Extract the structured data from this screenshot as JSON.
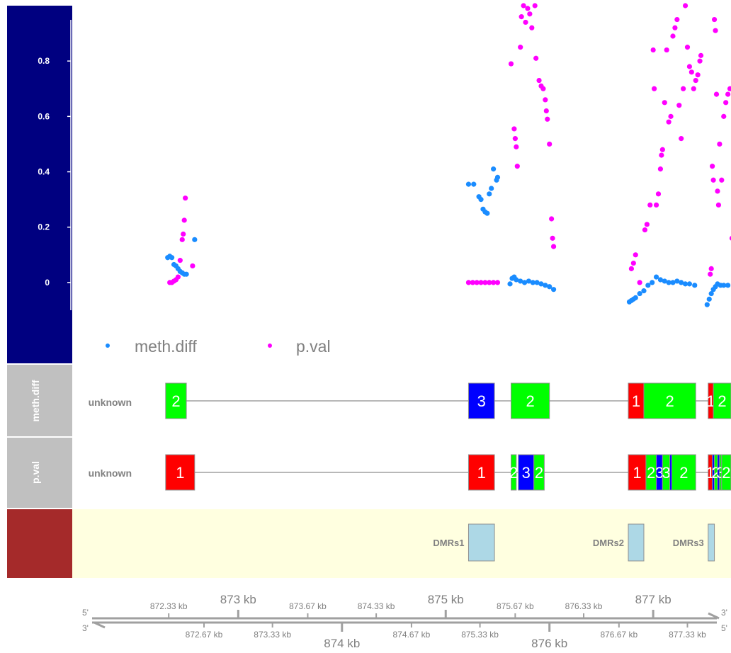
{
  "chart_data": {
    "type": "scatter",
    "x_unit": "kb",
    "xlim": [
      871.4,
      877.75
    ],
    "ylim": [
      -0.1,
      1.0
    ],
    "y_ticks": [
      "0",
      "0.2",
      "0.4",
      "0.6",
      "0.8"
    ],
    "y_tick_values": [
      0,
      0.2,
      0.4,
      0.6,
      0.8
    ],
    "legend": [
      {
        "name": "meth.diff",
        "color": "#1a8cff"
      },
      {
        "name": "p.val",
        "color": "#ff00ff"
      }
    ],
    "series": [
      {
        "name": "meth.diff",
        "color": "#1a8cff",
        "points": [
          [
            872.32,
            0.09
          ],
          [
            872.34,
            0.095
          ],
          [
            872.36,
            0.09
          ],
          [
            872.38,
            0.065
          ],
          [
            872.4,
            0.06
          ],
          [
            872.42,
            0.05
          ],
          [
            872.44,
            0.04
          ],
          [
            872.46,
            0.035
          ],
          [
            872.48,
            0.03
          ],
          [
            872.5,
            0.03
          ],
          [
            872.58,
            0.155
          ],
          [
            875.22,
            0.355
          ],
          [
            875.27,
            0.355
          ],
          [
            875.32,
            0.31
          ],
          [
            875.34,
            0.3
          ],
          [
            875.36,
            0.265
          ],
          [
            875.38,
            0.255
          ],
          [
            875.4,
            0.25
          ],
          [
            875.42,
            0.32
          ],
          [
            875.44,
            0.34
          ],
          [
            875.46,
            0.41
          ],
          [
            875.49,
            0.37
          ],
          [
            875.5,
            0.38
          ],
          [
            875.62,
            -0.005
          ],
          [
            875.64,
            0.015
          ],
          [
            875.66,
            0.02
          ],
          [
            875.68,
            0.01
          ],
          [
            875.72,
            0.005
          ],
          [
            875.76,
            0.0
          ],
          [
            875.8,
            0.005
          ],
          [
            875.84,
            0.0
          ],
          [
            875.88,
            0.0
          ],
          [
            875.92,
            -0.005
          ],
          [
            875.96,
            -0.01
          ],
          [
            876.0,
            -0.015
          ],
          [
            876.04,
            -0.025
          ],
          [
            876.77,
            -0.07
          ],
          [
            876.79,
            -0.065
          ],
          [
            876.81,
            -0.06
          ],
          [
            876.83,
            -0.055
          ],
          [
            876.87,
            -0.04
          ],
          [
            876.91,
            -0.03
          ],
          [
            876.95,
            -0.01
          ],
          [
            876.99,
            0.0
          ],
          [
            877.03,
            0.02
          ],
          [
            877.07,
            0.01
          ],
          [
            877.11,
            0.005
          ],
          [
            877.15,
            0.0
          ],
          [
            877.19,
            0.0
          ],
          [
            877.23,
            0.005
          ],
          [
            877.27,
            0.0
          ],
          [
            877.31,
            -0.005
          ],
          [
            877.35,
            -0.005
          ],
          [
            877.4,
            -0.01
          ],
          [
            877.52,
            -0.08
          ],
          [
            877.54,
            -0.06
          ],
          [
            877.56,
            -0.04
          ],
          [
            877.58,
            -0.025
          ],
          [
            877.6,
            -0.015
          ],
          [
            877.62,
            -0.005
          ],
          [
            877.65,
            -0.01
          ],
          [
            877.68,
            -0.01
          ],
          [
            877.72,
            -0.01
          ]
        ]
      },
      {
        "name": "p.val",
        "color": "#ff00ff",
        "points": [
          [
            872.34,
            0.0
          ],
          [
            872.36,
            0.0
          ],
          [
            872.38,
            0.005
          ],
          [
            872.4,
            0.01
          ],
          [
            872.42,
            0.02
          ],
          [
            872.44,
            0.08
          ],
          [
            872.46,
            0.155
          ],
          [
            872.47,
            0.175
          ],
          [
            872.48,
            0.225
          ],
          [
            872.49,
            0.305
          ],
          [
            872.56,
            0.06
          ],
          [
            875.22,
            0.0
          ],
          [
            875.26,
            0.0
          ],
          [
            875.3,
            0.0
          ],
          [
            875.34,
            0.0
          ],
          [
            875.38,
            0.0
          ],
          [
            875.42,
            0.0
          ],
          [
            875.46,
            0.0
          ],
          [
            875.5,
            0.0
          ],
          [
            875.63,
            0.79
          ],
          [
            875.66,
            0.555
          ],
          [
            875.67,
            0.52
          ],
          [
            875.68,
            0.49
          ],
          [
            875.69,
            0.42
          ],
          [
            875.72,
            0.85
          ],
          [
            875.73,
            0.96
          ],
          [
            875.75,
            1.0
          ],
          [
            875.77,
            0.94
          ],
          [
            875.79,
            0.99
          ],
          [
            875.81,
            0.97
          ],
          [
            875.83,
            0.92
          ],
          [
            875.86,
            1.0
          ],
          [
            875.87,
            0.81
          ],
          [
            875.9,
            0.73
          ],
          [
            875.92,
            0.71
          ],
          [
            875.94,
            0.7
          ],
          [
            875.96,
            0.66
          ],
          [
            875.97,
            0.62
          ],
          [
            875.98,
            0.59
          ],
          [
            876.0,
            0.5
          ],
          [
            876.02,
            0.23
          ],
          [
            876.03,
            0.16
          ],
          [
            876.04,
            0.13
          ],
          [
            876.79,
            0.05
          ],
          [
            876.81,
            0.07
          ],
          [
            876.83,
            0.1
          ],
          [
            876.87,
            0.0
          ],
          [
            876.92,
            0.19
          ],
          [
            876.94,
            0.21
          ],
          [
            876.97,
            0.28
          ],
          [
            877.0,
            0.84
          ],
          [
            877.01,
            0.7
          ],
          [
            877.03,
            0.28
          ],
          [
            877.05,
            0.32
          ],
          [
            877.07,
            0.41
          ],
          [
            877.08,
            0.46
          ],
          [
            877.09,
            0.48
          ],
          [
            877.11,
            0.65
          ],
          [
            877.13,
            0.84
          ],
          [
            877.15,
            0.58
          ],
          [
            877.17,
            0.6
          ],
          [
            877.19,
            0.89
          ],
          [
            877.21,
            0.92
          ],
          [
            877.23,
            0.95
          ],
          [
            877.25,
            0.64
          ],
          [
            877.27,
            0.52
          ],
          [
            877.29,
            0.7
          ],
          [
            877.31,
            1.0
          ],
          [
            877.33,
            0.85
          ],
          [
            877.35,
            0.78
          ],
          [
            877.37,
            0.76
          ],
          [
            877.39,
            0.7
          ],
          [
            877.41,
            0.73
          ],
          [
            877.43,
            0.75
          ],
          [
            877.45,
            0.8
          ],
          [
            877.46,
            0.82
          ],
          [
            877.55,
            0.03
          ],
          [
            877.56,
            0.05
          ],
          [
            877.57,
            0.42
          ],
          [
            877.58,
            0.37
          ],
          [
            877.59,
            0.95
          ],
          [
            877.6,
            0.91
          ],
          [
            877.61,
            0.68
          ],
          [
            877.62,
            0.33
          ],
          [
            877.63,
            0.28
          ],
          [
            877.64,
            0.5
          ],
          [
            877.66,
            0.37
          ],
          [
            877.68,
            0.6
          ],
          [
            877.7,
            0.65
          ],
          [
            877.72,
            0.68
          ],
          [
            877.74,
            0.7
          ],
          [
            877.76,
            0.16
          ]
        ]
      }
    ]
  },
  "tracks": {
    "meth_diff": {
      "title": "meth.diff",
      "row_label": "unknown",
      "range": [
        872.3,
        877.75
      ],
      "blocks": [
        {
          "start": 872.3,
          "end": 872.5,
          "label": "2",
          "color": "#00ff00"
        },
        {
          "start": 875.22,
          "end": 875.47,
          "label": "3",
          "color": "#0000ff"
        },
        {
          "start": 875.63,
          "end": 876.0,
          "label": "2",
          "color": "#00ff00"
        },
        {
          "start": 876.76,
          "end": 876.91,
          "label": "1",
          "color": "#ff0000"
        },
        {
          "start": 876.91,
          "end": 877.41,
          "label": "2",
          "color": "#00ff00"
        },
        {
          "start": 877.53,
          "end": 877.58,
          "label": "1",
          "color": "#ff0000"
        },
        {
          "start": 877.58,
          "end": 877.75,
          "label": "2",
          "color": "#00ff00"
        }
      ]
    },
    "p_val": {
      "title": "p.val",
      "row_label": "unknown",
      "range": [
        872.3,
        877.75
      ],
      "blocks": [
        {
          "start": 872.3,
          "end": 872.58,
          "label": "1",
          "color": "#ff0000"
        },
        {
          "start": 875.22,
          "end": 875.47,
          "label": "1",
          "color": "#ff0000"
        },
        {
          "start": 875.63,
          "end": 875.68,
          "label": "2",
          "color": "#00ff00"
        },
        {
          "start": 875.7,
          "end": 875.85,
          "label": "3",
          "color": "#0000ff"
        },
        {
          "start": 875.85,
          "end": 875.95,
          "label": "2",
          "color": "#00ff00"
        },
        {
          "start": 876.76,
          "end": 876.93,
          "label": "1",
          "color": "#ff0000"
        },
        {
          "start": 876.93,
          "end": 877.03,
          "label": "2",
          "color": "#00ff00"
        },
        {
          "start": 877.03,
          "end": 877.09,
          "label": "3",
          "color": "#0000ff"
        },
        {
          "start": 877.09,
          "end": 877.16,
          "label": "3",
          "color": "#00ff00"
        },
        {
          "start": 877.16,
          "end": 877.18,
          "label": "",
          "color": "#0000ff"
        },
        {
          "start": 877.18,
          "end": 877.41,
          "label": "2",
          "color": "#00ff00"
        },
        {
          "start": 877.53,
          "end": 877.57,
          "label": "1",
          "color": "#ff0000"
        },
        {
          "start": 877.57,
          "end": 877.59,
          "label": "",
          "color": "#0000ff"
        },
        {
          "start": 877.59,
          "end": 877.62,
          "label": "2",
          "color": "#00ff00"
        },
        {
          "start": 877.62,
          "end": 877.64,
          "label": "",
          "color": "#0000ff"
        },
        {
          "start": 877.64,
          "end": 877.66,
          "label": "3",
          "color": "#00ff00"
        },
        {
          "start": 877.66,
          "end": 877.75,
          "label": "2",
          "color": "#00ff00"
        }
      ]
    },
    "dmrs": {
      "title": "",
      "items": [
        {
          "start": 875.22,
          "end": 875.47,
          "label": "DMRs1",
          "color": "#add8e6"
        },
        {
          "start": 876.76,
          "end": 876.91,
          "label": "DMRs2",
          "color": "#add8e6"
        },
        {
          "start": 877.53,
          "end": 877.59,
          "label": "DMRs3",
          "color": "#add8e6"
        }
      ]
    }
  },
  "axis": {
    "major": [
      {
        "v": 873,
        "label": "873 kb",
        "side": "top"
      },
      {
        "v": 874,
        "label": "874 kb",
        "side": "bottom"
      },
      {
        "v": 875,
        "label": "875 kb",
        "side": "top"
      },
      {
        "v": 876,
        "label": "876 kb",
        "side": "bottom"
      },
      {
        "v": 877,
        "label": "877 kb",
        "side": "top"
      }
    ],
    "minor": [
      {
        "v": 872.33,
        "label": "872.33 kb",
        "side": "top"
      },
      {
        "v": 872.67,
        "label": "872.67 kb",
        "side": "bottom"
      },
      {
        "v": 873.33,
        "label": "873.33 kb",
        "side": "bottom"
      },
      {
        "v": 873.67,
        "label": "873.67 kb",
        "side": "top"
      },
      {
        "v": 874.33,
        "label": "874.33 kb",
        "side": "top"
      },
      {
        "v": 874.67,
        "label": "874.67 kb",
        "side": "bottom"
      },
      {
        "v": 875.33,
        "label": "875.33 kb",
        "side": "bottom"
      },
      {
        "v": 875.67,
        "label": "875.67 kb",
        "side": "top"
      },
      {
        "v": 876.33,
        "label": "876.33 kb",
        "side": "top"
      },
      {
        "v": 876.67,
        "label": "876.67 kb",
        "side": "bottom"
      },
      {
        "v": 877.33,
        "label": "877.33 kb",
        "side": "bottom"
      }
    ],
    "end_labels": {
      "top_left": "5'",
      "bottom_left": "3'",
      "top_right": "3'",
      "bottom_right": "5'"
    }
  },
  "colors": {
    "data_panel": "#000080",
    "track_panel": "#c0c0c0",
    "dmr_panel": "#a52a2a",
    "dmr_background": "#ffffe0",
    "axis": "#a0a0a0",
    "connector": "#a0a0a0"
  }
}
